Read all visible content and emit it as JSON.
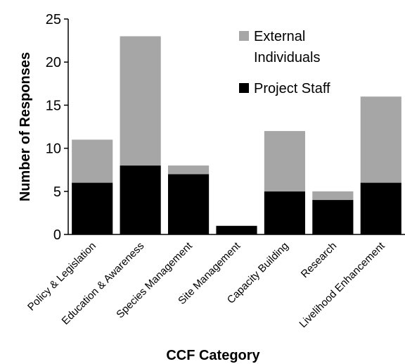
{
  "chart_data": {
    "type": "bar",
    "stacked": true,
    "title": "",
    "xlabel": "CCF Category",
    "ylabel": "Number of Responses",
    "ylim": [
      0,
      25
    ],
    "yticks": [
      "0",
      "5",
      "10",
      "15",
      "20",
      "25"
    ],
    "categories": [
      "Policy & Legislation",
      "Education & Awareness",
      "Species Management",
      "Site Management",
      "Capacity Building",
      "Research",
      "Livelihood Enhancement"
    ],
    "series": [
      {
        "name": "Project Staff",
        "color": "#000000",
        "values": [
          6,
          8,
          7,
          1,
          5,
          4,
          6
        ]
      },
      {
        "name": "External Individuals",
        "color": "#a6a6a6",
        "values": [
          5,
          15,
          1,
          0,
          7,
          1,
          10
        ]
      }
    ],
    "legend": {
      "position": "top-right",
      "items": [
        {
          "line1": "External",
          "line2": "Individuals",
          "color": "#a6a6a6"
        },
        {
          "line1": "Project Staff",
          "line2": "",
          "color": "#000000"
        }
      ]
    },
    "grid": false
  }
}
